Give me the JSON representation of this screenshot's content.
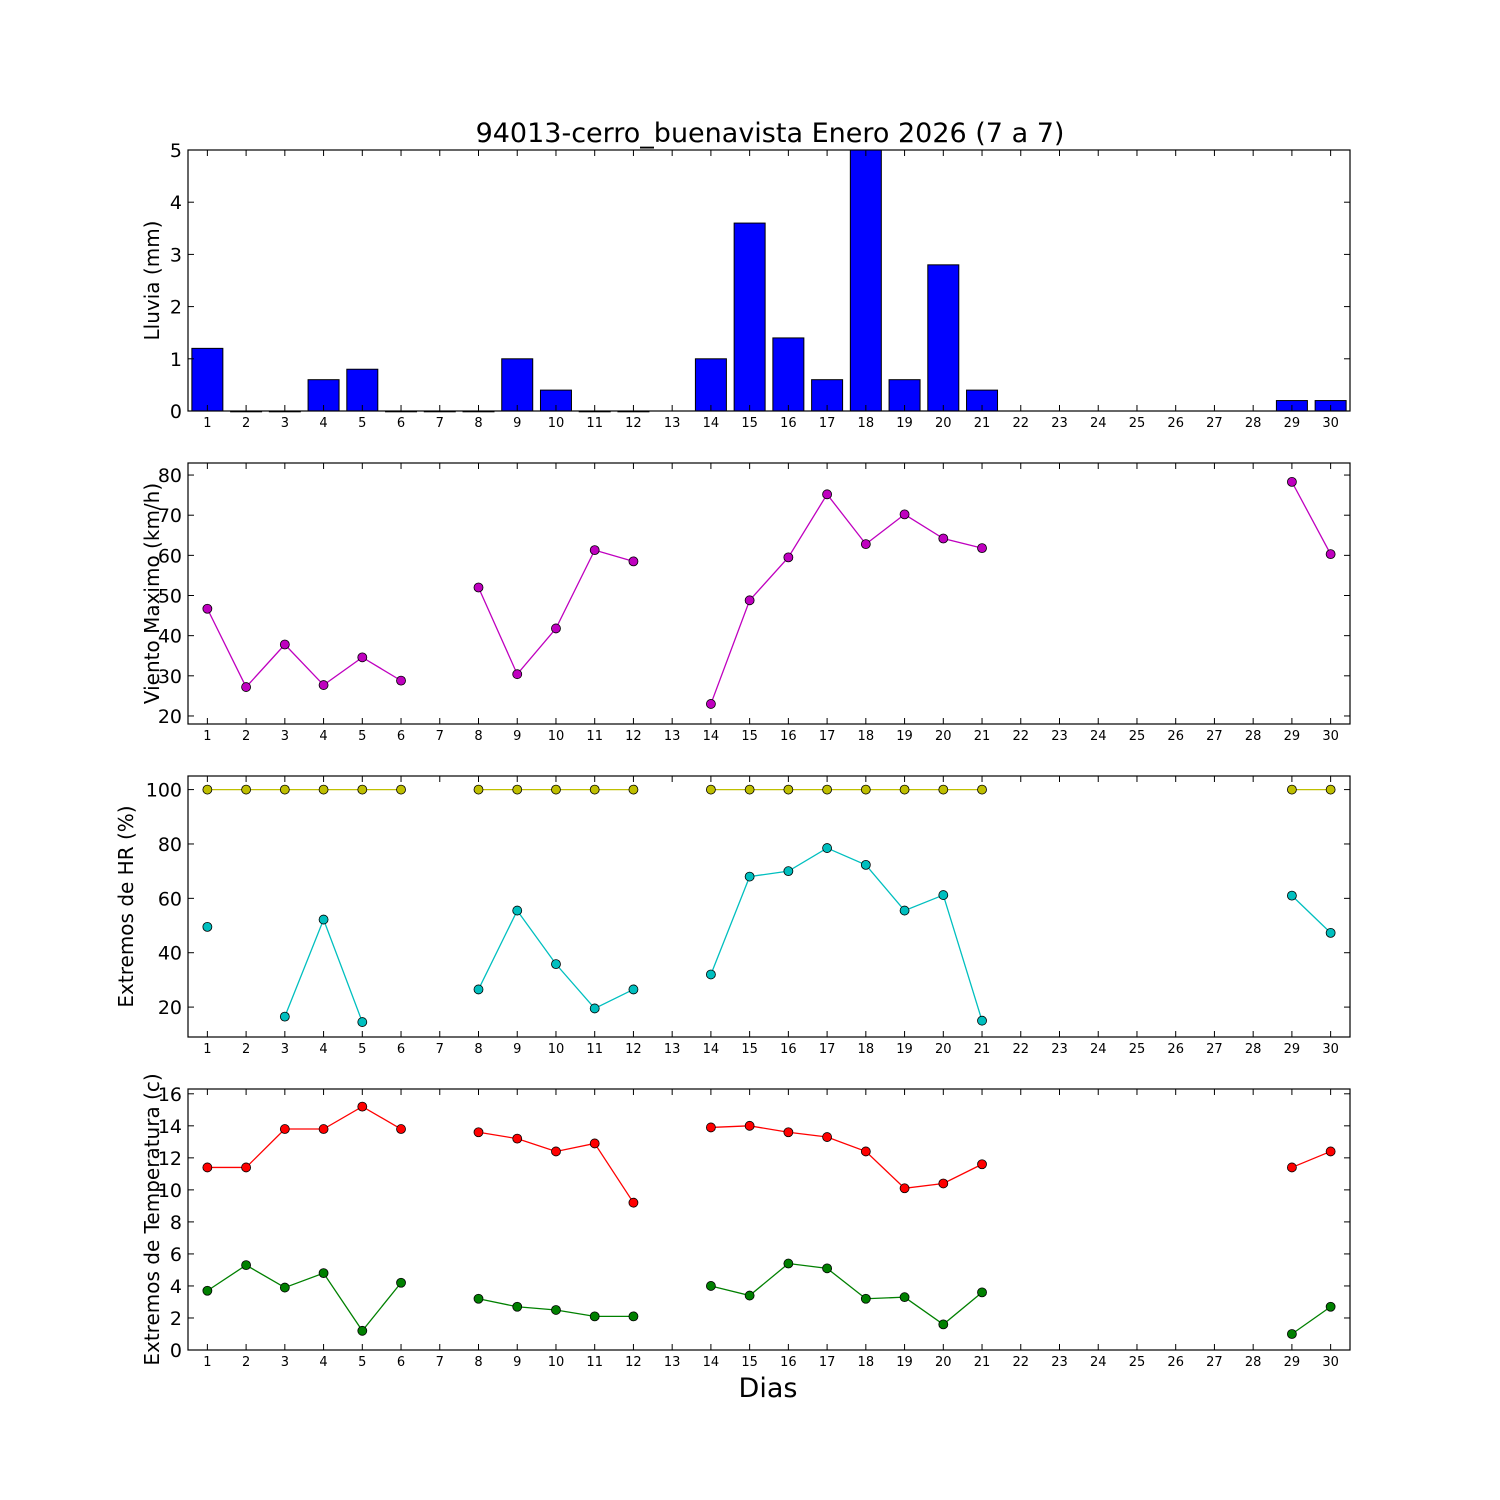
{
  "chart_data": {
    "title": "94013-cerro_buenavista Enero 2026  (7 a 7)",
    "xlabel": "Dias",
    "days": [
      1,
      2,
      3,
      4,
      5,
      6,
      7,
      8,
      9,
      10,
      11,
      12,
      13,
      14,
      15,
      16,
      17,
      18,
      19,
      20,
      21,
      22,
      23,
      24,
      25,
      26,
      27,
      28,
      29,
      30
    ],
    "panels": [
      {
        "type": "bar",
        "ylabel": "Lluvia (mm)",
        "ylim": [
          0,
          5
        ],
        "yticks": [
          0,
          1,
          2,
          3,
          4,
          5
        ],
        "series": [
          {
            "color": "#0000ff",
            "values": [
              1.2,
              0,
              0,
              0.6,
              0.8,
              0,
              0,
              0,
              1.0,
              0.4,
              0,
              0,
              null,
              1.0,
              3.6,
              1.4,
              0.6,
              5.0,
              0.6,
              2.8,
              0.4,
              null,
              null,
              null,
              null,
              null,
              null,
              null,
              0.2,
              0.2
            ]
          }
        ]
      },
      {
        "type": "line",
        "ylabel": "Viento Maximo (km/h)",
        "ylim": [
          18,
          83
        ],
        "yticks": [
          20,
          30,
          40,
          50,
          60,
          70,
          80
        ],
        "series": [
          {
            "color": "#bf00bf",
            "values": [
              46.7,
              27.2,
              37.8,
              27.7,
              34.6,
              28.8,
              null,
              52.0,
              30.4,
              41.8,
              61.3,
              58.5,
              null,
              23.0,
              48.8,
              59.5,
              75.2,
              62.8,
              70.2,
              64.2,
              61.8,
              null,
              null,
              null,
              null,
              null,
              null,
              null,
              78.3,
              60.3
            ]
          }
        ]
      },
      {
        "type": "line",
        "ylabel": "Extremos de HR (%)",
        "ylim": [
          9,
          105
        ],
        "yticks": [
          20,
          40,
          60,
          80,
          100
        ],
        "series": [
          {
            "color": "#bfbf00",
            "values": [
              100,
              100,
              100,
              100,
              100,
              100,
              null,
              100,
              100,
              100,
              100,
              100,
              null,
              100,
              100,
              100,
              100,
              100,
              100,
              100,
              100,
              null,
              null,
              null,
              null,
              null,
              null,
              null,
              100,
              100
            ]
          },
          {
            "color": "#00bfbf",
            "values": [
              49.5,
              null,
              16.5,
              52.2,
              14.5,
              null,
              null,
              26.5,
              55.5,
              35.8,
              19.5,
              26.5,
              null,
              32.0,
              68.0,
              70.0,
              78.5,
              72.3,
              55.5,
              61.2,
              15.0,
              null,
              null,
              null,
              null,
              null,
              null,
              null,
              61.0,
              47.3
            ]
          }
        ]
      },
      {
        "type": "line",
        "ylabel": "Extremos de Temperatura (c)",
        "ylim": [
          0,
          16.3
        ],
        "yticks": [
          0,
          2,
          4,
          6,
          8,
          10,
          12,
          14,
          16
        ],
        "series": [
          {
            "color": "#ff0000",
            "values": [
              11.4,
              11.4,
              13.8,
              13.8,
              15.2,
              13.8,
              null,
              13.6,
              13.2,
              12.4,
              12.9,
              9.2,
              null,
              13.9,
              14.0,
              13.6,
              13.3,
              12.4,
              10.1,
              10.4,
              11.6,
              null,
              null,
              null,
              null,
              null,
              null,
              null,
              11.4,
              12.4
            ]
          },
          {
            "color": "#008000",
            "values": [
              3.7,
              5.3,
              3.9,
              4.8,
              1.2,
              4.2,
              null,
              3.2,
              2.7,
              2.5,
              2.1,
              2.1,
              null,
              4.0,
              3.4,
              5.4,
              5.1,
              3.2,
              3.3,
              1.6,
              3.6,
              null,
              null,
              null,
              null,
              null,
              null,
              null,
              1.0,
              2.7
            ]
          }
        ]
      }
    ]
  }
}
